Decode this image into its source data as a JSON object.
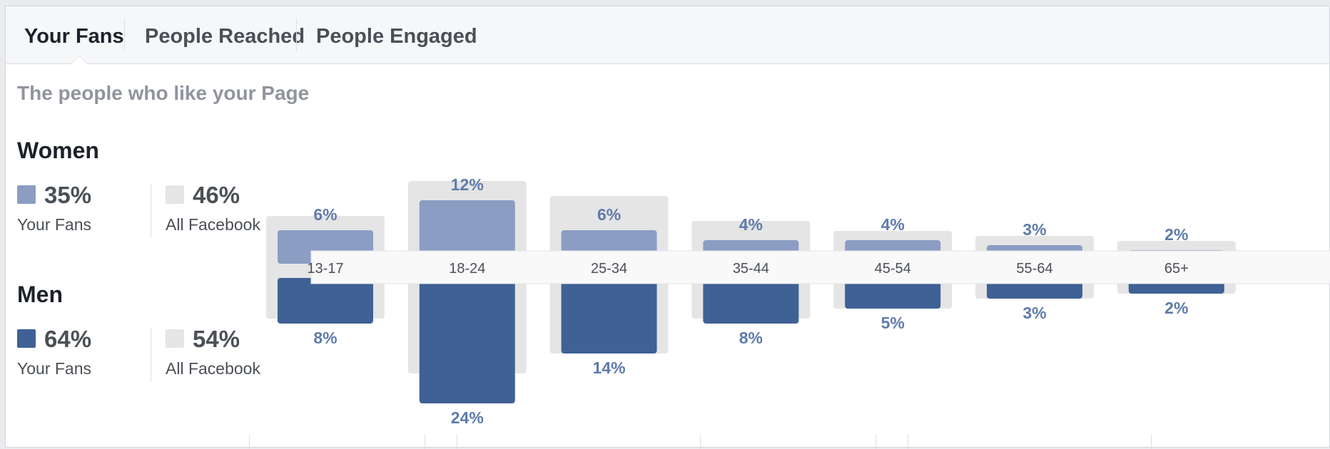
{
  "tabs": [
    {
      "label": "Your Fans",
      "active": true
    },
    {
      "label": "People Reached",
      "active": false
    },
    {
      "label": "People Engaged",
      "active": false
    }
  ],
  "subtitle": "The people who like your Page",
  "women": {
    "title": "Women",
    "fans": {
      "pct": "35%",
      "label": "Your Fans"
    },
    "facebook": {
      "pct": "46%",
      "label": "All Facebook"
    }
  },
  "men": {
    "title": "Men",
    "fans": {
      "pct": "64%",
      "label": "Your Fans"
    },
    "facebook": {
      "pct": "54%",
      "label": "All Facebook"
    }
  },
  "colors": {
    "women_fans": "#8b9dc3",
    "men_fans": "#3f6195",
    "all_facebook": "#e5e5e5",
    "label_text": "#5f7bab"
  },
  "chart_data": {
    "type": "bar",
    "categories": [
      "13-17",
      "18-24",
      "25-34",
      "35-44",
      "45-54",
      "55-64",
      "65+"
    ],
    "series": [
      {
        "name": "Women",
        "values": [
          6,
          12,
          6,
          4,
          4,
          3,
          2
        ],
        "labels": [
          "6%",
          "12%",
          "6%",
          "4%",
          "4%",
          "3%",
          "2%"
        ]
      },
      {
        "name": "Men",
        "values": [
          8,
          24,
          14,
          8,
          5,
          3,
          2
        ],
        "labels": [
          "8%",
          "24%",
          "14%",
          "8%",
          "5%",
          "3%",
          "2%"
        ]
      }
    ],
    "all_facebook_women": [
      7,
      14,
      11,
      6,
      4,
      3,
      2
    ],
    "all_facebook_men": [
      7,
      18,
      14,
      7,
      5,
      3,
      2
    ],
    "orientation": "diverging vertical bars (women above axis, men below)"
  }
}
